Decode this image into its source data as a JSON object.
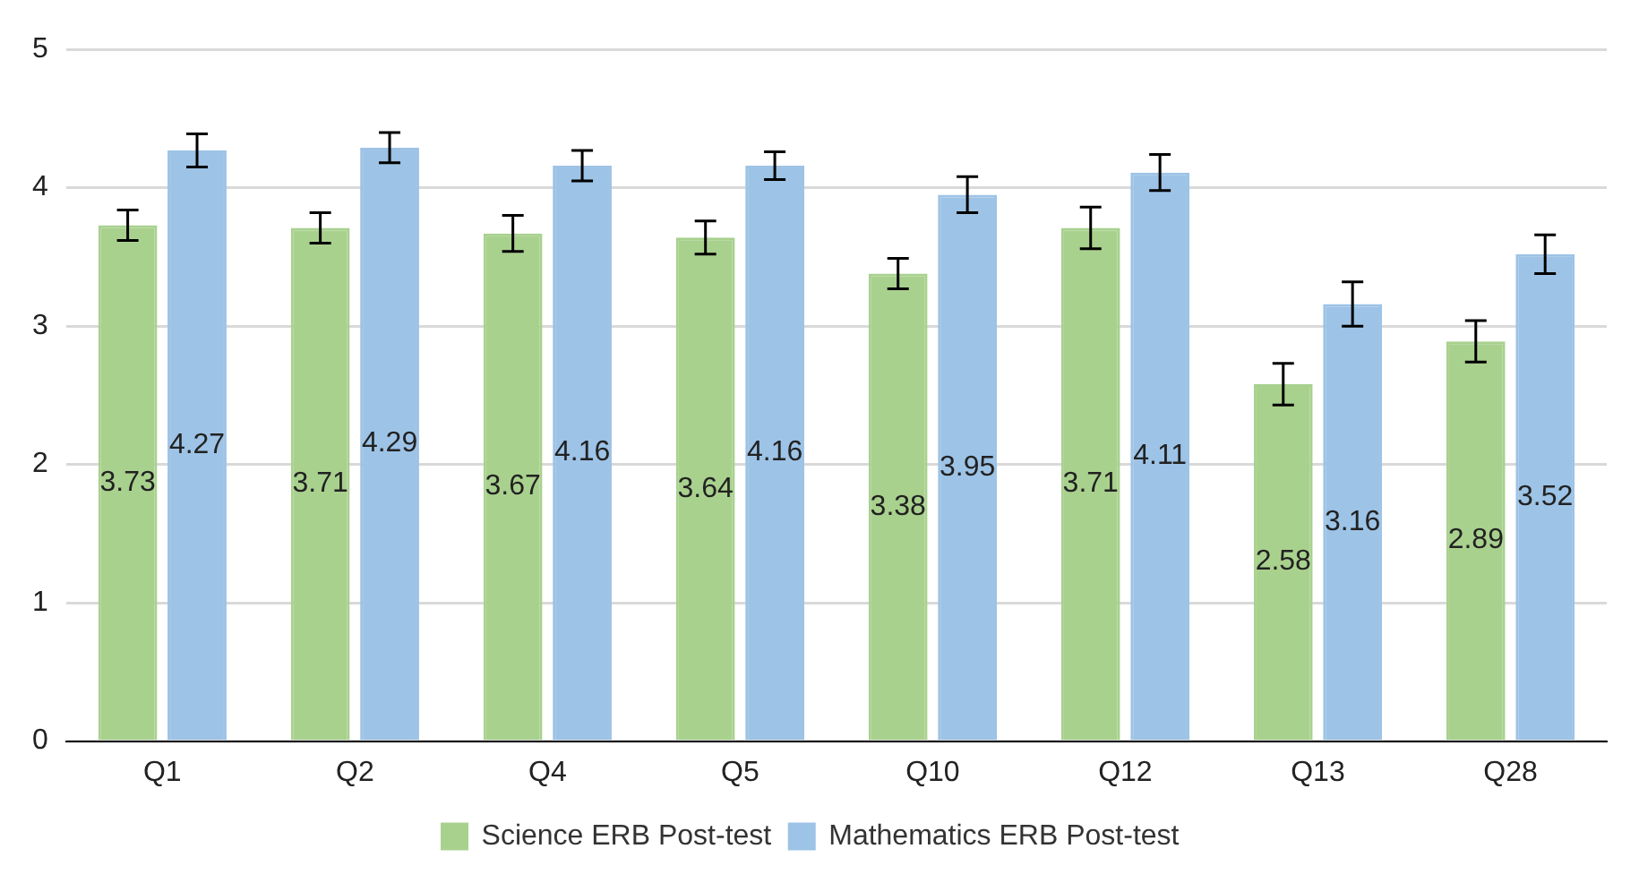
{
  "chart_data": {
    "type": "bar",
    "categories": [
      "Q1",
      "Q2",
      "Q4",
      "Q5",
      "Q10",
      "Q12",
      "Q13",
      "Q28"
    ],
    "series": [
      {
        "name": "Science ERB Post-test",
        "color": "#a9d18e",
        "values": [
          3.73,
          3.71,
          3.67,
          3.64,
          3.38,
          3.71,
          2.58,
          2.89
        ],
        "errors": [
          0.11,
          0.11,
          0.13,
          0.12,
          0.11,
          0.15,
          0.15,
          0.15
        ]
      },
      {
        "name": "Mathematics ERB Post-test",
        "color": "#9dc3e6",
        "values": [
          4.27,
          4.29,
          4.16,
          4.16,
          3.95,
          4.11,
          3.16,
          3.52
        ],
        "errors": [
          0.12,
          0.11,
          0.11,
          0.1,
          0.13,
          0.13,
          0.16,
          0.14
        ]
      }
    ],
    "ylim": [
      0,
      5
    ],
    "yticks": [
      0,
      1,
      2,
      3,
      4,
      5
    ],
    "grid": "y",
    "legend": "bottom",
    "data_labels": true
  }
}
